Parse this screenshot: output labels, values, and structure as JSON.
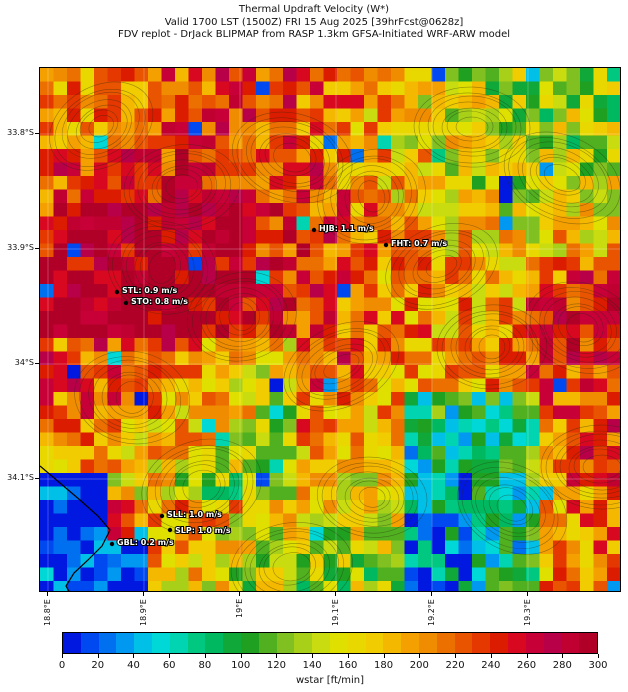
{
  "title": {
    "line1": "Thermal Updraft Velocity (W*)",
    "line2": "Valid 1700 LST (1500Z) FRI 15 Aug 2025 [39hrFcst@0628z]",
    "line3": "FDV replot - DrJack BLIPMAP from RASP 1.3km GFSA-Initiated WRF-ARW model"
  },
  "latitude_ticks": [
    "33.8°S",
    "33.9°S",
    "34°S",
    "34.1°S"
  ],
  "longitude_ticks": [
    "18.8°E",
    "18.9°E",
    "19°E",
    "19.1°E",
    "19.2°E",
    "19.3°E"
  ],
  "stations": [
    {
      "id": "HJB",
      "label": "HJB: 1.1 m/s"
    },
    {
      "id": "FHT",
      "label": "FHT: 0.7 m/s"
    },
    {
      "id": "STL",
      "label": "STL: 0.9 m/s"
    },
    {
      "id": "STO",
      "label": "STO: 0.8 m/s"
    },
    {
      "id": "SLL",
      "label": "SLL: 1.0 m/s"
    },
    {
      "id": "SLP",
      "label": "SLP: 1.0 m/s"
    },
    {
      "id": "GBL",
      "label": "GBL: 0.2 m/s"
    }
  ],
  "colorbar": {
    "label": "wstar [ft/min]",
    "ticks": [
      "0",
      "20",
      "40",
      "60",
      "80",
      "100",
      "120",
      "140",
      "160",
      "180",
      "200",
      "220",
      "240",
      "260",
      "280",
      "300"
    ],
    "colors": [
      "#0018e0",
      "#0048f0",
      "#0070f0",
      "#0098f0",
      "#00c0e8",
      "#00d8d8",
      "#00d4b0",
      "#00c880",
      "#00b860",
      "#10a838",
      "#20a020",
      "#50b020",
      "#80c020",
      "#a8d018",
      "#c8dc10",
      "#e0e000",
      "#e8d800",
      "#f0cc00",
      "#f4b800",
      "#f4a000",
      "#f08c00",
      "#ec7000",
      "#e85400",
      "#e43800",
      "#dc1c00",
      "#d80820",
      "#c80038",
      "#b80048",
      "#c00030",
      "#b00028"
    ]
  }
}
